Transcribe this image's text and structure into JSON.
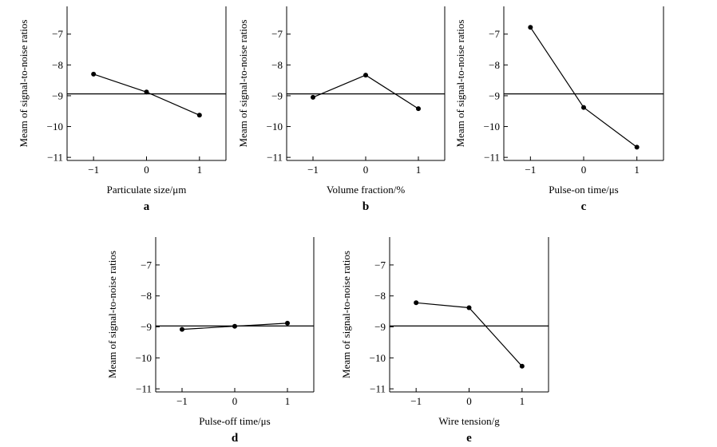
{
  "figure": {
    "ylabel": "Meam of signal-to-noise ratios",
    "colors": {
      "line": "#000000",
      "background": "#ffffff"
    }
  },
  "chart_data": [
    {
      "type": "line",
      "panel": "a",
      "xlabel": "Particulate size/μm",
      "ylabel": "Meam of signal-to-noise ratios",
      "x": [
        -1,
        0,
        1
      ],
      "y": [
        -8.3,
        -8.88,
        -9.63
      ],
      "mean_line": -8.94,
      "xlim": [
        -1.5,
        1.5
      ],
      "ylim": [
        -11.1,
        -6.1
      ],
      "xticks": [
        -1,
        0,
        1
      ],
      "yticks": [
        -7,
        -8,
        -9,
        -10,
        -11
      ]
    },
    {
      "type": "line",
      "panel": "b",
      "xlabel": "Volume fraction/%",
      "ylabel": "Meam of signal-to-noise ratios",
      "x": [
        -1,
        0,
        1
      ],
      "y": [
        -9.05,
        -8.33,
        -9.42
      ],
      "mean_line": -8.94,
      "xlim": [
        -1.5,
        1.5
      ],
      "ylim": [
        -11.1,
        -6.1
      ],
      "xticks": [
        -1,
        0,
        1
      ],
      "yticks": [
        -7,
        -8,
        -9,
        -10,
        -11
      ]
    },
    {
      "type": "line",
      "panel": "c",
      "xlabel": "Pulse-on time/μs",
      "ylabel": "Meam of signal-to-noise ratios",
      "x": [
        -1,
        0,
        1
      ],
      "y": [
        -6.78,
        -9.38,
        -10.67
      ],
      "mean_line": -8.94,
      "xlim": [
        -1.5,
        1.5
      ],
      "ylim": [
        -11.1,
        -6.1
      ],
      "xticks": [
        -1,
        0,
        1
      ],
      "yticks": [
        -7,
        -8,
        -9,
        -10,
        -11
      ]
    },
    {
      "type": "line",
      "panel": "d",
      "xlabel": "Pulse-off time/μs",
      "ylabel": "Meam of signal-to-noise ratios",
      "x": [
        -1,
        0,
        1
      ],
      "y": [
        -9.08,
        -8.98,
        -8.88
      ],
      "mean_line": -8.97,
      "xlim": [
        -1.5,
        1.5
      ],
      "ylim": [
        -11.1,
        -6.1
      ],
      "xticks": [
        -1,
        0,
        1
      ],
      "yticks": [
        -7,
        -8,
        -9,
        -10,
        -11
      ]
    },
    {
      "type": "line",
      "panel": "e",
      "xlabel": "Wire tension/g",
      "ylabel": "Meam of signal-to-noise ratios",
      "x": [
        -1,
        0,
        1
      ],
      "y": [
        -8.22,
        -8.38,
        -10.27
      ],
      "mean_line": -8.97,
      "xlim": [
        -1.5,
        1.5
      ],
      "ylim": [
        -11.1,
        -6.1
      ],
      "xticks": [
        -1,
        0,
        1
      ],
      "yticks": [
        -7,
        -8,
        -9,
        -10,
        -11
      ]
    }
  ]
}
